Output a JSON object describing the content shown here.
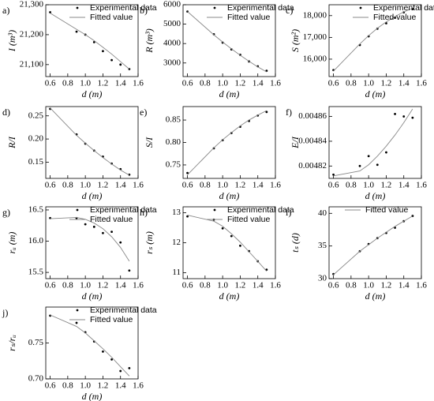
{
  "chart_data": [
    {
      "type": "scatter",
      "label": "a)",
      "xlabel": "d (m)",
      "ylabel": "I (m³)",
      "legend": "upper right",
      "x": [
        0.6,
        0.9,
        1.0,
        1.1,
        1.2,
        1.3,
        1.4,
        1.5
      ],
      "xlim": [
        0.55,
        1.6
      ],
      "xticks": [
        0.6,
        0.8,
        {
          "value": 1.0,
          "label": "1.0"
        },
        1.2,
        1.4,
        1.6
      ],
      "ylim": [
        21060,
        21300
      ],
      "yticks": [
        {
          "value": 21100,
          "label": "21,100"
        },
        {
          "value": 21200,
          "label": "21,200"
        },
        {
          "value": 21300,
          "label": "21,300"
        }
      ],
      "series": [
        {
          "name": "Experimental data",
          "type": "scatter",
          "color": "#000000",
          "values": [
            21275,
            21210,
            21200,
            21175,
            21145,
            21115,
            21100,
            21085
          ]
        },
        {
          "name": "Fitted value",
          "type": "line",
          "color": "#888888",
          "values": [
            21272,
            21218,
            21200,
            21180,
            21158,
            21135,
            21110,
            21085
          ]
        }
      ]
    },
    {
      "type": "scatter",
      "label": "b)",
      "xlabel": "d (m)",
      "ylabel": "R (m³)",
      "legend": "upper right",
      "x": [
        0.6,
        0.9,
        1.0,
        1.1,
        1.2,
        1.3,
        1.4,
        1.5
      ],
      "xlim": [
        0.55,
        1.6
      ],
      "xticks": [
        0.6,
        0.8,
        {
          "value": 1.0,
          "label": "1.0"
        },
        1.2,
        1.4,
        1.6
      ],
      "ylim": [
        2300,
        6000
      ],
      "yticks": [
        3000,
        4000,
        5000,
        6000
      ],
      "series": [
        {
          "name": "Experimental data",
          "type": "scatter",
          "color": "#000000",
          "values": [
            5650,
            4480,
            4050,
            3700,
            3420,
            3080,
            2830,
            2600
          ]
        },
        {
          "name": "Fitted value",
          "type": "line",
          "color": "#888888",
          "values": [
            5650,
            4450,
            4080,
            3730,
            3400,
            3090,
            2800,
            2540
          ]
        }
      ]
    },
    {
      "type": "scatter",
      "label": "c)",
      "xlabel": "d (m)",
      "ylabel": "S (m²)",
      "legend": "upper right",
      "x": [
        0.6,
        0.9,
        1.0,
        1.1,
        1.2,
        1.3,
        1.4,
        1.5
      ],
      "xlim": [
        0.55,
        1.6
      ],
      "xticks": [
        0.6,
        0.8,
        {
          "value": 1.0,
          "label": "1.0"
        },
        1.2,
        1.4,
        1.6
      ],
      "ylim": [
        15200,
        18500
      ],
      "yticks": [
        {
          "value": 16000,
          "label": "16,000"
        },
        {
          "value": 17000,
          "label": "17,000"
        },
        {
          "value": 18000,
          "label": "18,000"
        }
      ],
      "series": [
        {
          "name": "Experimental data",
          "type": "scatter",
          "color": "#000000",
          "values": [
            15500,
            16650,
            17050,
            17400,
            17650,
            17900,
            18150,
            18300
          ]
        },
        {
          "name": "Fitted value",
          "type": "line",
          "color": "#888888",
          "values": [
            15450,
            16700,
            17080,
            17420,
            17710,
            17960,
            18170,
            18340
          ]
        }
      ]
    },
    {
      "type": "scatter",
      "label": "d)",
      "xlabel": "d (m)",
      "ylabel": "R/I",
      "legend": "none",
      "x": [
        0.6,
        0.9,
        1.0,
        1.1,
        1.2,
        1.3,
        1.4,
        1.5
      ],
      "xlim": [
        0.55,
        1.6
      ],
      "xticks": [
        0.6,
        0.8,
        {
          "value": 1.0,
          "label": "1.0"
        },
        1.2,
        1.4,
        1.6
      ],
      "ylim": [
        0.115,
        0.27
      ],
      "yticks": [
        0.15,
        {
          "value": 0.2,
          "label": "0.20"
        },
        0.25
      ],
      "series": [
        {
          "name": "Experimental data",
          "type": "scatter",
          "color": "#000000",
          "values": [
            0.265,
            0.21,
            0.19,
            0.175,
            0.162,
            0.147,
            0.135,
            0.123
          ]
        },
        {
          "name": "Fitted value",
          "type": "line",
          "color": "#888888",
          "values": [
            0.267,
            0.208,
            0.191,
            0.175,
            0.16,
            0.146,
            0.133,
            0.122
          ]
        }
      ]
    },
    {
      "type": "scatter",
      "label": "e)",
      "xlabel": "d (m)",
      "ylabel": "S/I",
      "legend": "none",
      "x": [
        0.6,
        0.9,
        1.0,
        1.1,
        1.2,
        1.3,
        1.4,
        1.5
      ],
      "xlim": [
        0.55,
        1.6
      ],
      "xticks": [
        0.6,
        0.8,
        {
          "value": 1.0,
          "label": "1.0"
        },
        1.2,
        1.4,
        1.6
      ],
      "ylim": [
        0.72,
        0.88
      ],
      "yticks": [
        0.75,
        {
          "value": 0.8,
          "label": "0.80"
        },
        0.85
      ],
      "series": [
        {
          "name": "Experimental data",
          "type": "scatter",
          "color": "#000000",
          "values": [
            0.732,
            0.787,
            0.805,
            0.821,
            0.835,
            0.848,
            0.86,
            0.868
          ]
        },
        {
          "name": "Fitted value",
          "type": "line",
          "color": "#888888",
          "values": [
            0.728,
            0.788,
            0.806,
            0.822,
            0.837,
            0.85,
            0.861,
            0.871
          ]
        }
      ]
    },
    {
      "type": "scatter",
      "label": "f)",
      "xlabel": "d (m)",
      "ylabel": "E/I",
      "legend": "none",
      "x": [
        0.6,
        0.9,
        1.0,
        1.1,
        1.2,
        1.3,
        1.4,
        1.5
      ],
      "xlim": [
        0.55,
        1.6
      ],
      "xticks": [
        0.6,
        0.8,
        {
          "value": 1.0,
          "label": "1.0"
        },
        1.2,
        1.4,
        1.6
      ],
      "ylim": [
        0.00481,
        0.004868
      ],
      "yticks": [
        0.00482,
        0.00484,
        0.00486
      ],
      "series": [
        {
          "name": "Experimental data",
          "type": "scatter",
          "color": "#000000",
          "values": [
            0.004813,
            0.00482,
            0.004828,
            0.004821,
            0.004831,
            0.004862,
            0.00486,
            0.004859
          ]
        },
        {
          "name": "Fitted value",
          "type": "line",
          "color": "#888888",
          "values": [
            0.004812,
            0.004816,
            0.004821,
            0.004828,
            0.004836,
            0.004845,
            0.004855,
            0.004866
          ]
        }
      ]
    },
    {
      "type": "scatter",
      "label": "g)",
      "xlabel": "d (m)",
      "ylabel": "rᵤ (m)",
      "legend": "upper right",
      "x": [
        0.6,
        0.9,
        1.0,
        1.1,
        1.2,
        1.3,
        1.4,
        1.5
      ],
      "xlim": [
        0.55,
        1.6
      ],
      "xticks": [
        0.6,
        0.8,
        {
          "value": 1.0,
          "label": "1.0"
        },
        1.2,
        1.4,
        1.6
      ],
      "ylim": [
        15.4,
        16.55
      ],
      "yticks": [
        15.5,
        {
          "value": 16.0,
          "label": "16.0"
        },
        16.5
      ],
      "series": [
        {
          "name": "Experimental data",
          "type": "scatter",
          "color": "#000000",
          "values": [
            16.37,
            16.37,
            16.27,
            16.23,
            16.13,
            16.15,
            15.98,
            15.53
          ]
        },
        {
          "name": "Fitted value",
          "type": "line",
          "color": "#888888",
          "values": [
            16.36,
            16.38,
            16.35,
            16.29,
            16.2,
            16.07,
            15.9,
            15.68
          ]
        }
      ]
    },
    {
      "type": "scatter",
      "label": "h)",
      "xlabel": "d (m)",
      "ylabel": "rₛ (m)",
      "legend": "upper right",
      "x": [
        0.6,
        0.9,
        1.0,
        1.1,
        1.2,
        1.3,
        1.4,
        1.5
      ],
      "xlim": [
        0.55,
        1.6
      ],
      "xticks": [
        0.6,
        0.8,
        {
          "value": 1.0,
          "label": "1.0"
        },
        1.2,
        1.4,
        1.6
      ],
      "ylim": [
        10.8,
        13.2
      ],
      "yticks": [
        11,
        12,
        13
      ],
      "series": [
        {
          "name": "Experimental data",
          "type": "scatter",
          "color": "#000000",
          "values": [
            12.88,
            12.77,
            12.48,
            12.22,
            11.9,
            11.72,
            11.38,
            11.1
          ]
        },
        {
          "name": "Fitted value",
          "type": "line",
          "color": "#888888",
          "values": [
            12.92,
            12.72,
            12.55,
            12.3,
            12.02,
            11.7,
            11.38,
            11.05
          ]
        }
      ]
    },
    {
      "type": "scatter",
      "label": "i)",
      "xlabel": "d (m)",
      "ylabel": "tₛ (d)",
      "legend": "upper center",
      "x": [
        0.6,
        0.9,
        1.0,
        1.1,
        1.2,
        1.3,
        1.4,
        1.5
      ],
      "xlim": [
        0.55,
        1.6
      ],
      "xticks": [
        0.6,
        0.8,
        {
          "value": 1.0,
          "label": "1.0"
        },
        1.2,
        1.4,
        1.6
      ],
      "ylim": [
        30,
        41
      ],
      "yticks": [
        30,
        35,
        40
      ],
      "series": [
        {
          "name": "Experimental data",
          "type": "scatter",
          "color": "#000000",
          "legend": false,
          "values": [
            30.7,
            34.2,
            35.3,
            36.2,
            37.0,
            37.8,
            38.8,
            39.6
          ]
        },
        {
          "name": "Fitted value",
          "type": "line",
          "color": "#888888",
          "values": [
            30.6,
            34.2,
            35.2,
            36.2,
            37.1,
            38.0,
            38.8,
            39.6
          ]
        }
      ]
    },
    {
      "type": "scatter",
      "label": "j)",
      "xlabel": "d (m)",
      "ylabel": "rₛ/rᵤ",
      "legend": "upper right",
      "x": [
        0.6,
        0.9,
        1.0,
        1.1,
        1.2,
        1.3,
        1.4,
        1.5
      ],
      "xlim": [
        0.55,
        1.6
      ],
      "xticks": [
        0.6,
        0.8,
        {
          "value": 1.0,
          "label": "1.0"
        },
        1.2,
        1.4,
        1.6
      ],
      "ylim": [
        0.7,
        0.8
      ],
      "yticks": [
        {
          "value": 0.7,
          "label": "0.70"
        },
        0.75
      ],
      "series": [
        {
          "name": "Experimental data",
          "type": "scatter",
          "color": "#000000",
          "values": [
            0.788,
            0.778,
            0.765,
            0.752,
            0.738,
            0.727,
            0.711,
            0.715
          ]
        },
        {
          "name": "Fitted value",
          "type": "line",
          "color": "#888888",
          "values": [
            0.789,
            0.773,
            0.764,
            0.753,
            0.742,
            0.73,
            0.717,
            0.704
          ]
        }
      ]
    }
  ]
}
